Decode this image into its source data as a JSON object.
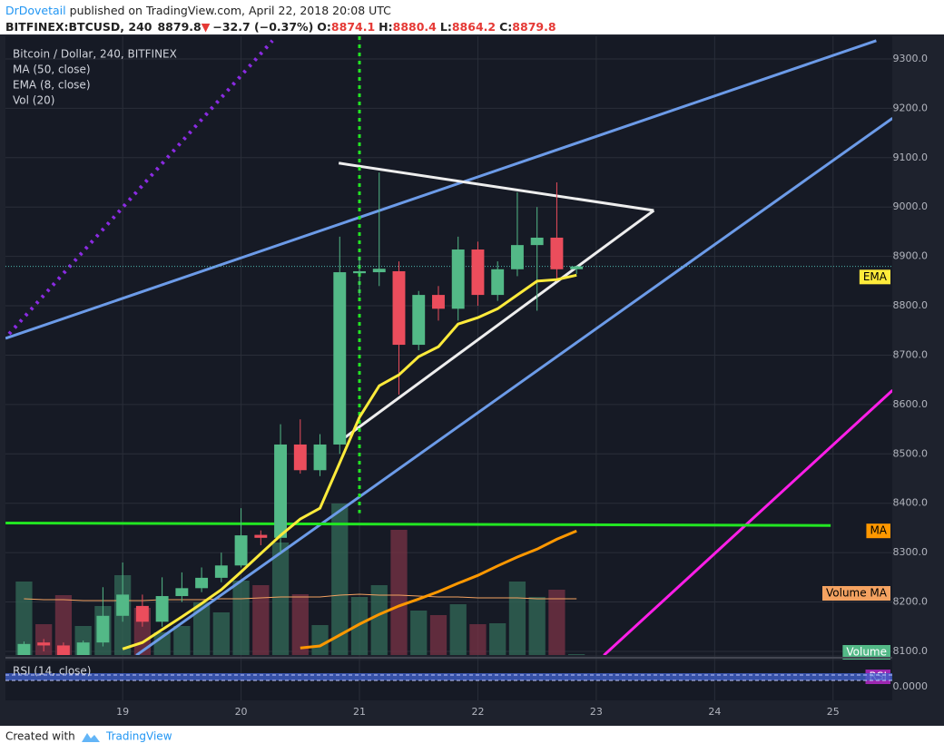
{
  "header": {
    "author": "DrDovetail",
    "published": "published on TradingView.com, April 22, 2018 20:08 UTC",
    "symbol": "BITFINEX:BTCUSD, 240",
    "last": "8879.8",
    "arrow": "▼",
    "change": "−32.7 (−0.37%)",
    "open_label": "O:",
    "open": "8874.1",
    "high_label": "H:",
    "high": "8880.4",
    "low_label": "L:",
    "low": "8864.2",
    "close_label": "C:",
    "close": "8879.8"
  },
  "footer": {
    "created": "Created with",
    "brand": "TradingView"
  },
  "chart_data": {
    "type": "candlestick",
    "title": "Bitcoin / Dollar, 240, BITFINEX",
    "x": [
      18.1667,
      18.3333,
      18.5,
      18.6667,
      18.8333,
      19,
      19.1667,
      19.3333,
      19.5,
      19.6667,
      19.8333,
      20,
      20.1667,
      20.3333,
      20.5,
      20.6667,
      20.8333,
      21,
      21.1667,
      21.3333,
      21.5,
      21.6667,
      21.8333,
      22,
      22.1667,
      22.3333,
      22.5,
      22.6667,
      22.8333
    ],
    "open": [
      8090,
      8118,
      8112,
      8085,
      8118,
      8172,
      8192,
      8160,
      8212,
      8228,
      8249,
      8274,
      8336,
      8330,
      8519,
      8467,
      8519,
      8866,
      8868,
      8870,
      8721,
      8822,
      8794,
      8914,
      8822,
      8874,
      8923,
      8938,
      8874.1
    ],
    "high": [
      8120,
      8125,
      8118,
      8122,
      8230,
      8280,
      8215,
      8250,
      8260,
      8270,
      8300,
      8390,
      8345,
      8560,
      8570,
      8540,
      8940,
      8900,
      9070,
      8890,
      8830,
      8840,
      8940,
      8930,
      8890,
      9030,
      9000,
      9050,
      8880.4
    ],
    "low": [
      8070,
      8100,
      8080,
      8080,
      8110,
      8160,
      8150,
      8150,
      8200,
      8220,
      8240,
      8270,
      8315,
      8300,
      8460,
      8455,
      8500,
      8820,
      8840,
      8620,
      8710,
      8770,
      8770,
      8800,
      8810,
      8860,
      8790,
      8850,
      8864.2
    ],
    "close": [
      8115,
      8112,
      8085,
      8118,
      8172,
      8215,
      8160,
      8212,
      8228,
      8249,
      8274,
      8335,
      8330,
      8519,
      8467,
      8519,
      8868,
      8870,
      8875,
      8721,
      8822,
      8794,
      8914,
      8822,
      8874,
      8923,
      8938,
      8874,
      8879.8
    ],
    "up_color": "#53b987",
    "down_color": "#eb4d5c",
    "xlim": [
      18.01,
      25.5
    ],
    "xticks": [
      19,
      20,
      21,
      22,
      23,
      24,
      25
    ],
    "ylim": [
      8092.6,
      9345.9
    ],
    "yticks": [
      {
        "value": 8100,
        "label": "8100.0"
      },
      {
        "value": 8200,
        "label": "8200.0"
      },
      {
        "value": 8300,
        "label": "8300.0"
      },
      {
        "value": 8400,
        "label": "8400.0"
      },
      {
        "value": 8500,
        "label": "8500.0"
      },
      {
        "value": 8600,
        "label": "8600.0"
      },
      {
        "value": 8700,
        "label": "8700.0"
      },
      {
        "value": 8800,
        "label": "8800.0"
      },
      {
        "value": 8900,
        "label": "8900.0"
      },
      {
        "value": 9000,
        "label": "9000.0"
      },
      {
        "value": 9100,
        "label": "9100.0"
      },
      {
        "value": 9200,
        "label": "9200.0"
      },
      {
        "value": 9300,
        "label": "9300.0"
      }
    ],
    "grid": true,
    "last_price_color": "#4db6ac",
    "series": [
      {
        "name": "MA (50, close)",
        "tag": "MA",
        "color": "#ff9800",
        "values": [
          null,
          null,
          null,
          null,
          null,
          null,
          null,
          null,
          null,
          null,
          null,
          null,
          null,
          null,
          8107,
          8111,
          8133,
          8155,
          8175,
          8192,
          8206,
          8221,
          8238,
          8254,
          8273,
          8291,
          8307,
          8327,
          8344
        ]
      },
      {
        "name": "EMA (8, close)",
        "tag": "EMA",
        "color": "#ffeb3b",
        "values": [
          null,
          null,
          null,
          null,
          null,
          8105,
          8118,
          8144,
          8170,
          8197,
          8225,
          8261,
          8298,
          8335,
          8368,
          8390,
          8482,
          8574,
          8638,
          8660,
          8697,
          8717,
          8763,
          8776,
          8794,
          8822,
          8850,
          8853,
          8862
        ]
      }
    ],
    "volume": {
      "name": "Vol (20)",
      "tag": "Volume",
      "tag_color": "#53b987",
      "up_color": "#336b58",
      "down_color": "#7a3345",
      "vlim": [
        0,
        682
      ],
      "values": [
        81,
        34,
        66,
        32,
        54,
        88,
        52,
        25,
        32,
        58,
        47,
        82,
        77,
        124,
        67,
        33,
        167,
        64,
        77,
        138,
        49,
        44,
        56,
        34,
        35,
        81,
        64,
        72,
        1
      ],
      "ma_tag": "Volume MA",
      "ma_color": "#f4a261",
      "ma_values": [
        62,
        61,
        61,
        60,
        60,
        60,
        60,
        61,
        61,
        61,
        62,
        62,
        63,
        64,
        64,
        64,
        66,
        67,
        66,
        66,
        65,
        64,
        64,
        63,
        63,
        63,
        62,
        62,
        62
      ]
    },
    "rsi": {
      "name": "RSI (14, close)",
      "tag": "RSI",
      "tag_color": "#9c27b0",
      "ticks": [
        {
          "value": 0,
          "label": "0.0000"
        }
      ]
    },
    "drawings": [
      {
        "color": "#6c9be8",
        "width": 3,
        "dash": "none",
        "points": [
          [
            18.011,
            8734
          ],
          [
            25.365,
            9337
          ]
        ]
      },
      {
        "color": "#6c9be8",
        "width": 3,
        "dash": "none",
        "points": [
          [
            19.115,
            8092
          ],
          [
            25.503,
            9180
          ]
        ]
      },
      {
        "color": "#8a2be2",
        "width": 4,
        "dash": "3 6",
        "points": [
          [
            18.041,
            8743
          ],
          [
            20.265,
            9337
          ]
        ]
      },
      {
        "color": "#ff1ee8",
        "width": 3,
        "dash": "none",
        "points": [
          [
            23.064,
            8092
          ],
          [
            25.503,
            8629
          ]
        ]
      },
      {
        "color": "#22e622",
        "width": 3,
        "dash": "none",
        "points": [
          [
            18.011,
            8360
          ],
          [
            24.98,
            8355
          ]
        ]
      },
      {
        "color": "#eeeeee",
        "width": 3,
        "dash": "none",
        "points": [
          [
            20.825,
            9089
          ],
          [
            23.486,
            8993
          ]
        ]
      },
      {
        "color": "#eeeeee",
        "width": 3,
        "dash": "none",
        "points": [
          [
            20.825,
            8524
          ],
          [
            23.486,
            8993
          ]
        ]
      },
      {
        "color": "#22e622",
        "width": 3,
        "dash": "4 5",
        "points": [
          [
            21,
            9345.9
          ],
          [
            21,
            8380
          ]
        ]
      }
    ]
  }
}
